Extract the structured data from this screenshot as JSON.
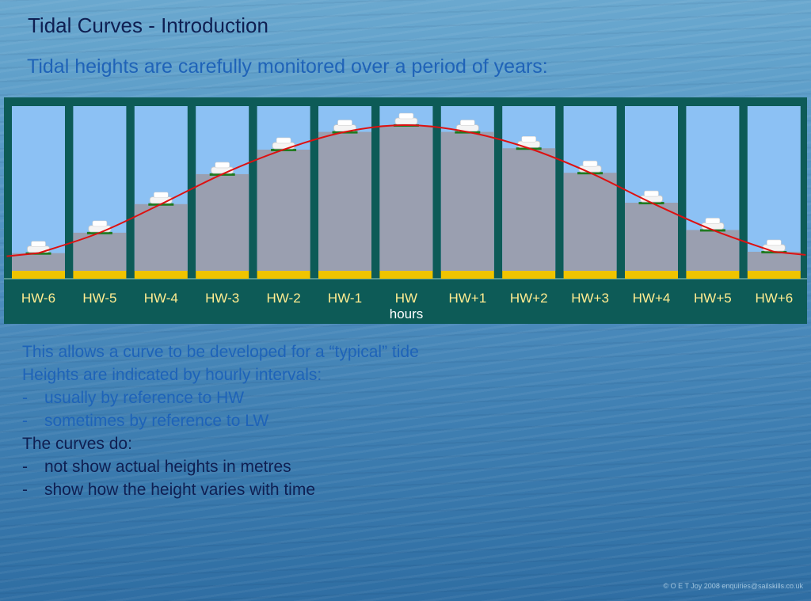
{
  "title": "Tidal Curves - Introduction",
  "subtitle": "Tidal heights are carefully monitored over a period of years:",
  "chart_data": {
    "type": "bar",
    "categories": [
      "HW-6",
      "HW-5",
      "HW-4",
      "HW-3",
      "HW-2",
      "HW-1",
      "HW",
      "HW+1",
      "HW+2",
      "HW+3",
      "HW+4",
      "HW+5",
      "HW+6"
    ],
    "values": [
      0.06,
      0.21,
      0.42,
      0.64,
      0.82,
      0.95,
      1.0,
      0.95,
      0.83,
      0.65,
      0.43,
      0.23,
      0.07
    ],
    "xlabel": "hours",
    "ylabel": "",
    "ylim": [
      0,
      1
    ],
    "has_curve": true,
    "curve_color": "#dd1111",
    "water_color": "#9a9fb0",
    "sky_color": "#8cc1f4",
    "frame_color": "#0d5b57",
    "seabed_color": "#f0c400",
    "marker_color": "#1f7a1f"
  },
  "notes": [
    {
      "dash": "",
      "text": "This allows a curve to be developed for a “typical” tide",
      "color": "#1e63b8"
    },
    {
      "dash": "",
      "text": "Heights are indicated by hourly intervals:",
      "color": "#1e63b8"
    },
    {
      "dash": "-",
      "text": "usually by reference to HW",
      "color": "#1e63b8"
    },
    {
      "dash": "-",
      "text": "sometimes by reference to LW",
      "color": "#1e63b8"
    },
    {
      "dash": "",
      "text": "The curves do:",
      "color": "#0f1f52"
    },
    {
      "dash": "-",
      "text": "not show actual heights in metres",
      "color": "#0f1f52"
    },
    {
      "dash": "-",
      "text": "show how the height varies with time",
      "color": "#0f1f52"
    }
  ],
  "copyright": "© O E T Joy 2008  enquiries@sailskills.co.uk"
}
